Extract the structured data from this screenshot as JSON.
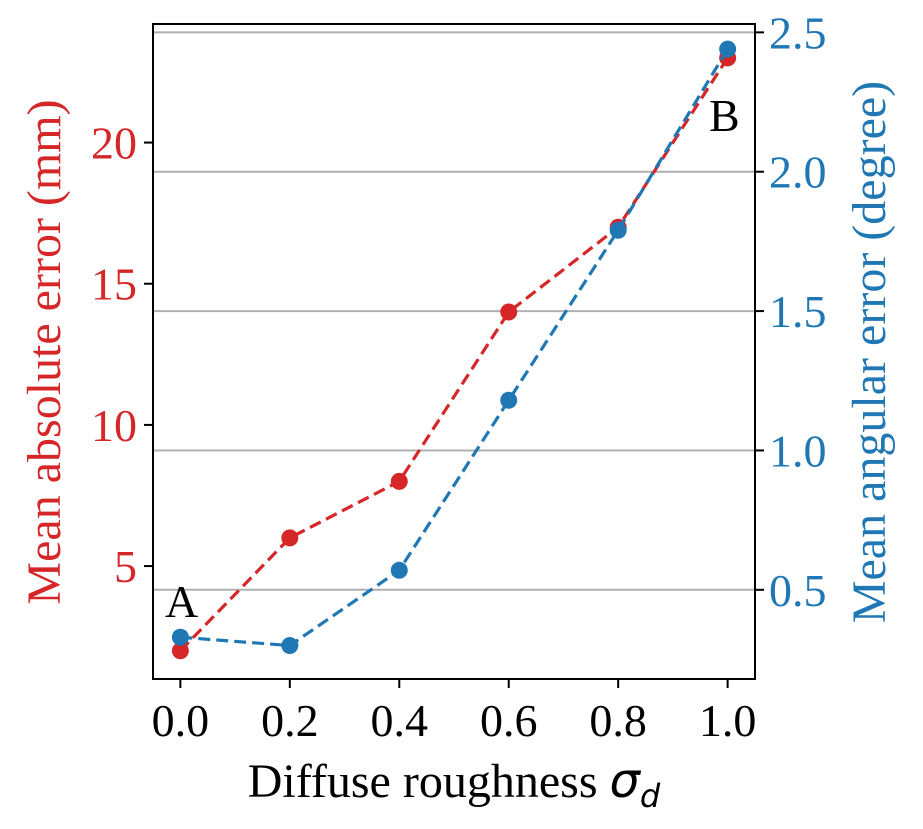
{
  "chart_data": {
    "type": "line",
    "x": [
      0.0,
      0.2,
      0.4,
      0.6,
      0.8,
      1.0
    ],
    "xlabel": "Diffuse roughness",
    "xlabel_symbol": "σ",
    "xlabel_subscript": "d",
    "xlim": [
      -0.05,
      1.05
    ],
    "xticks": [
      "0.0",
      "0.2",
      "0.4",
      "0.6",
      "0.8",
      "1.0"
    ],
    "xtick_values": [
      0.0,
      0.2,
      0.4,
      0.6,
      0.8,
      1.0
    ],
    "left_axis": {
      "label": "Mean absolute error (mm)",
      "color": "#d62728",
      "ylim": [
        1.0,
        24.2
      ],
      "ticks": [
        "5",
        "10",
        "15",
        "20"
      ],
      "tick_values": [
        5,
        10,
        15,
        20
      ]
    },
    "right_axis": {
      "label": "Mean angular error (degree)",
      "color": "#1f77b4",
      "ylim": [
        0.18,
        2.53
      ],
      "ticks": [
        "0.5",
        "1.0",
        "1.5",
        "2.0",
        "2.5"
      ],
      "tick_values": [
        0.5,
        1.0,
        1.5,
        2.0,
        2.5
      ]
    },
    "grid": "horizontal lines at right-axis ticks",
    "series": [
      {
        "axis": "left",
        "color": "#d62728",
        "values": [
          2.0,
          6.0,
          8.0,
          14.0,
          17.0,
          23.0
        ]
      },
      {
        "axis": "right",
        "color": "#1f77b4",
        "values": [
          0.33,
          0.3,
          0.57,
          1.18,
          1.79,
          2.44
        ]
      }
    ],
    "annotations": [
      {
        "text": "A",
        "x": 0.0,
        "axis": "left",
        "y": 3.4
      },
      {
        "text": "B",
        "x": 1.0,
        "axis": "left",
        "y": 21.0
      }
    ]
  }
}
